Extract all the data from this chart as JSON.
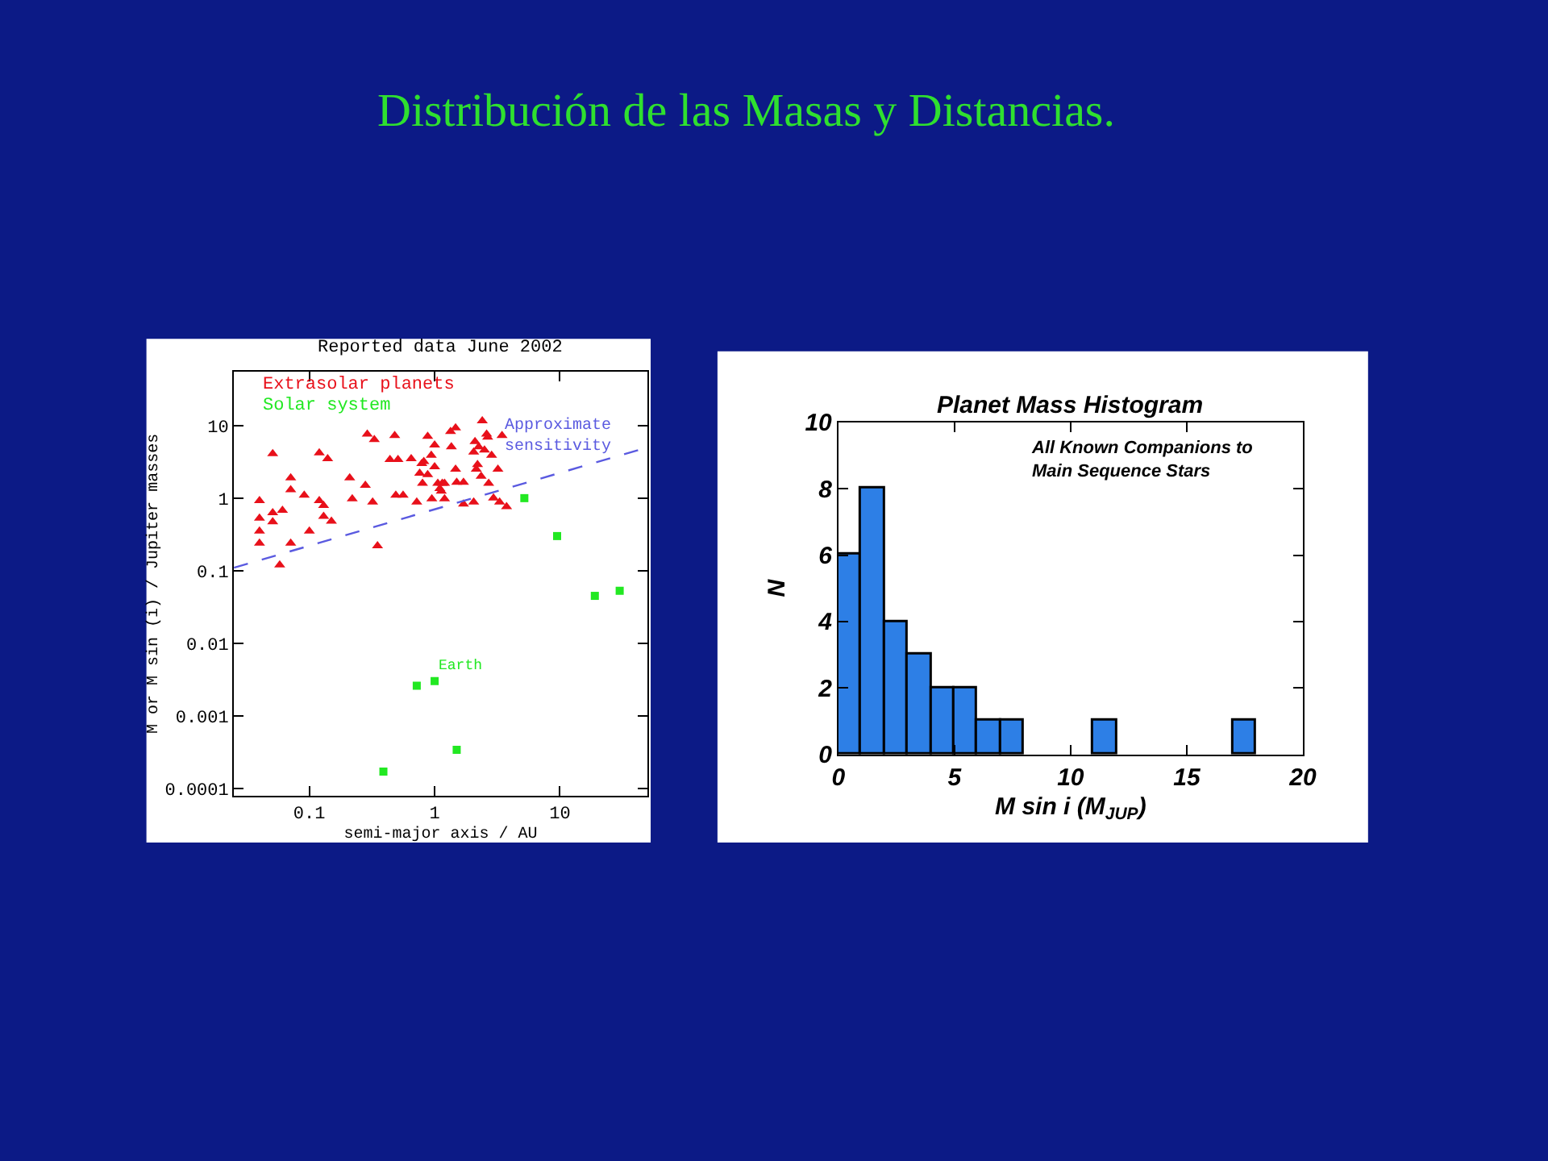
{
  "chart_data": [
    {
      "type": "other",
      "title": "Distribución de las Masas y Distancias."
    },
    {
      "type": "scatter",
      "title": "Reported data June 2002",
      "xlabel": "semi-major axis / AU",
      "ylabel": "M or M sin (i) / Jupiter masses",
      "log": "xy",
      "xlim": [
        0.025,
        50
      ],
      "ylim": [
        8e-05,
        55
      ],
      "xticks": [
        0.1,
        1,
        10
      ],
      "yticks": [
        0.0001,
        0.001,
        0.01,
        0.1,
        1,
        10
      ],
      "legend": "top left",
      "series": [
        {
          "name": "Extrasolar planets",
          "color": "#e8101a",
          "marker": "triangle",
          "x": [
            0.04,
            0.04,
            0.04,
            0.04,
            0.051,
            0.051,
            0.051,
            0.061,
            0.058,
            0.071,
            0.071,
            0.071,
            0.091,
            0.1,
            0.12,
            0.12,
            0.13,
            0.13,
            0.14,
            0.15,
            0.21,
            0.22,
            0.28,
            0.29,
            0.32,
            0.33,
            0.35,
            0.44,
            0.48,
            0.51,
            0.49,
            0.56,
            0.65,
            0.72,
            0.76,
            0.79,
            0.82,
            0.8,
            0.88,
            0.88,
            0.94,
            1.0,
            1.0,
            1.06,
            1.1,
            1.13,
            1.15,
            1.2,
            0.95,
            1.2,
            1.34,
            1.47,
            1.36,
            1.47,
            1.5,
            1.7,
            1.7,
            2.05,
            2.05,
            2.1,
            2.15,
            2.2,
            2.25,
            2.4,
            2.5,
            2.6,
            2.7,
            2.35,
            2.85,
            3.2,
            3.45,
            2.95,
            3.3,
            3.75,
            2.65
          ],
          "values": [
            0.92,
            0.53,
            0.35,
            0.24,
            4.1,
            0.63,
            0.47,
            0.68,
            0.12,
            1.9,
            1.3,
            0.24,
            1.1,
            0.35,
            0.92,
            4.2,
            0.79,
            0.56,
            3.5,
            0.48,
            1.9,
            0.98,
            1.5,
            7.6,
            0.88,
            6.4,
            0.22,
            3.4,
            7.3,
            3.4,
            1.1,
            1.1,
            3.5,
            0.88,
            2.2,
            3.0,
            3.2,
            1.6,
            7.1,
            2.1,
            3.9,
            5.4,
            2.7,
            1.6,
            1.35,
            1.25,
            1.6,
            1.6,
            0.98,
            0.98,
            8.3,
            9.3,
            5.1,
            2.5,
            1.65,
            1.65,
            0.83,
            0.88,
            4.3,
            6.0,
            2.5,
            2.9,
            5.1,
            11.6,
            4.6,
            7.6,
            1.6,
            2.0,
            3.9,
            2.5,
            7.3,
            1.0,
            0.88,
            0.76,
            6.9
          ]
        },
        {
          "name": "Solar system",
          "color": "#22e822",
          "marker": "square",
          "x": [
            0.39,
            0.72,
            1.0,
            1.5,
            5.2,
            9.5,
            19,
            30
          ],
          "values": [
            0.00017,
            0.0026,
            0.003,
            0.00034,
            1.0,
            0.3,
            0.045,
            0.053
          ]
        },
        {
          "type": "line",
          "name": "Approximate sensitivity",
          "color": "#5a5ae0",
          "line_style": "dashed",
          "x": [
            0.025,
            50
          ],
          "values": [
            0.11,
            5.0
          ]
        }
      ],
      "annotations": [
        {
          "text": "Earth",
          "x": 1.0,
          "y": 0.003
        }
      ]
    },
    {
      "type": "histogram",
      "title": "Planet Mass Histogram",
      "xlabel": "M sin i (M$_{JUP}$)",
      "ylabel": "N",
      "bins": [
        0,
        1,
        2,
        3,
        4,
        5,
        6,
        7,
        8,
        9,
        10,
        11,
        12,
        13,
        14,
        15,
        16,
        17,
        18
      ],
      "values": [
        6,
        8,
        4,
        3,
        2,
        2,
        1,
        1,
        0,
        0,
        0,
        1,
        0,
        0,
        0,
        0,
        0,
        1
      ],
      "color": "#2d7fe6",
      "xlim": [
        0,
        20
      ],
      "ylim": [
        0,
        10
      ],
      "xticks": [
        0,
        5,
        10,
        15,
        20
      ],
      "yticks": [
        0,
        2,
        4,
        6,
        8,
        10
      ],
      "annotations": [
        "All Known Companions to Main Sequence Stars"
      ]
    }
  ]
}
